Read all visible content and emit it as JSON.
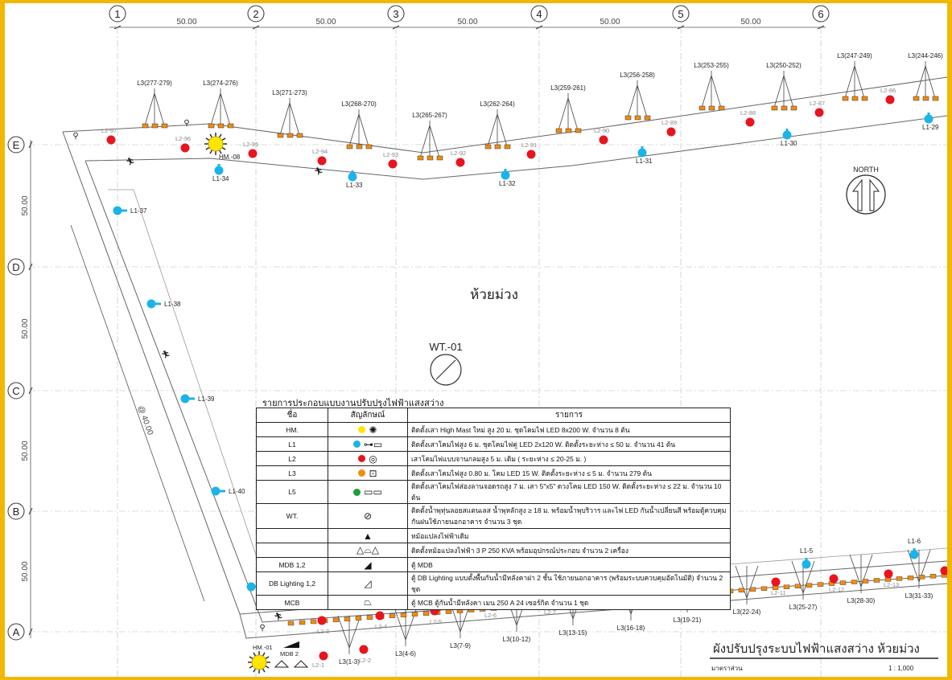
{
  "grid": {
    "columns": [
      "1",
      "2",
      "3",
      "4",
      "5",
      "6"
    ],
    "rows": [
      "E",
      "D",
      "C",
      "B",
      "A"
    ],
    "col_spacing_label": "50.00",
    "row_spacing_label": "50.00",
    "diag_label": "@ 40.00"
  },
  "area_name": "ห้วยม่วง",
  "north_label": "NORTH",
  "wt_label": "WT.-01",
  "l3_groups_top": [
    "L3(277-279)",
    "L3(274-276)",
    "L3(271-273)",
    "L3(268-270)",
    "L3(265-267)",
    "L3(262-264)",
    "L3(259-261)",
    "L3(256-258)",
    "L3(253-255)",
    "L3(250-252)",
    "L3(247-249)",
    "L3(244-246)"
  ],
  "l2_top": [
    "L2-97",
    "L2-96",
    "L2-95",
    "L2-94",
    "L2-93",
    "L2-92",
    "L2-91",
    "L2-90",
    "L2-89",
    "L2-88",
    "L2-87",
    "L2-86"
  ],
  "l1_top": [
    "L1-34",
    "L1-33",
    "L1-32",
    "L1-31",
    "L1-30",
    "L1-29"
  ],
  "l1_left": [
    "L1-37",
    "L1-38",
    "L1-39",
    "L1-40",
    "L1-41"
  ],
  "hm_top": "HM.-08",
  "l1_bottom": [
    "L1-1",
    "L1-2",
    "L1-3",
    "L1-5",
    "L1-6"
  ],
  "l2_bottom": [
    "L2-3",
    "L2-4",
    "L2-5",
    "L2-6",
    "L2-7",
    "L2-8",
    "L2-9",
    "L2-10",
    "L2-11",
    "L2-12",
    "L2-13"
  ],
  "l3_groups_bottom": [
    "L3(1-3)",
    "L3(4-6)",
    "L3(7-9)",
    "L3(10-12)",
    "L3(13-15)",
    "L3(16-18)",
    "L3(19-21)",
    "L3(22-24)",
    "L3(25-27)",
    "L3(28-30)",
    "L3(31-33)"
  ],
  "bottom_left": {
    "hm": "HM.-01",
    "mdb": "MDB 2",
    "l2_1": "L2-1",
    "l2_2": "L2-2"
  },
  "legend": {
    "title": "รายการประกอบแบบงานปรับปรุงไฟฟ้าแสงสว่าง",
    "headers": [
      "ชื่อ",
      "สัญลักษณ์",
      "รายการ"
    ],
    "rows": [
      {
        "code": "HM.",
        "desc": "ติดตั้งเสา High Mast ใหม่ สูง 20 ม. ชุดโคมไฟ LED 8x200 W. จำนวน 8 ต้น"
      },
      {
        "code": "L1",
        "desc": "ติดตั้งเสาโคมไฟสูง 6 ม. ชุดโคมไฟคู่ LED 2x120 W. ติดตั้งระยะห่าง ≤ 50 ม. จำนวน 41 ต้น"
      },
      {
        "code": "L2",
        "desc": "เสาโคมไฟแบบจานกลมสูง 5 ม. เดิม ( ระยะห่าง ≤ 20-25 ม. )"
      },
      {
        "code": "L3",
        "desc": "ติดตั้งเสาโคมไฟสูง 0.80 ม. โคม LED 15 W. ติดตั้งระยะห่าง ≤ 5 ม. จำนวน 279 ต้น"
      },
      {
        "code": "L5",
        "desc": "ติดตั้งเสาโคมไฟส่องลานจอดรถสูง 7 ม. เสา 5\"x5\" ดวงโคม LED 150 W. ติดตั้งระยะห่าง ≤ 22 ม. จำนวน 10 ต้น"
      },
      {
        "code": "WT.",
        "desc": "ติดตั้งน้ำพุทุ่นลอยสแตนเลส น้ำพุหลักสูง ≥ 18 ม. พร้อมน้ำพุบริวาร และไฟ LED กันน้ำเปลี่ยนสี พร้อมตู้ควบคุมกันฝนใช้ภายนอกอาคาร จำนวน 3 ชุด"
      },
      {
        "code": "",
        "desc": "หม้อแปลงไฟฟ้าเดิม"
      },
      {
        "code": "",
        "desc": "ติดตั้งหม้อแปลงไฟฟ้า 3 P 250 KVA พร้อมอุปกรณ์ประกอบ จำนวน 2 เครื่อง"
      },
      {
        "code": "MDB 1,2",
        "desc": "ตู้ MDB"
      },
      {
        "code": "DB Lighting 1,2",
        "desc": "ตู้ DB Lighting แบบตั้งพื้นกันน้ำมีหลังคาฝา 2 ชั้น ใช้ภายนอกอาคาร (พร้อมระบบควบคุมอัตโนมัติ) จำนวน 2 ชุด"
      },
      {
        "code": "MCB",
        "desc": "ตู้ MCB ตู้กันน้ำมีหลังคา เมน 250 A 24 เซอร์กิต จำนวน 1 ชุด"
      }
    ]
  },
  "title_block": {
    "title": "ผังปรับปรุงระบบไฟฟ้าแสงสว่าง ห้วยม่วง",
    "scale_label": "มาตราส่วน",
    "scale": "1 : 1,000"
  },
  "colors": {
    "hm": "#ffe600",
    "l1": "#1cb4e8",
    "l2": "#e8141e",
    "l3": "#f08c10",
    "l5": "#18a03c",
    "frame": "#f2b705"
  }
}
